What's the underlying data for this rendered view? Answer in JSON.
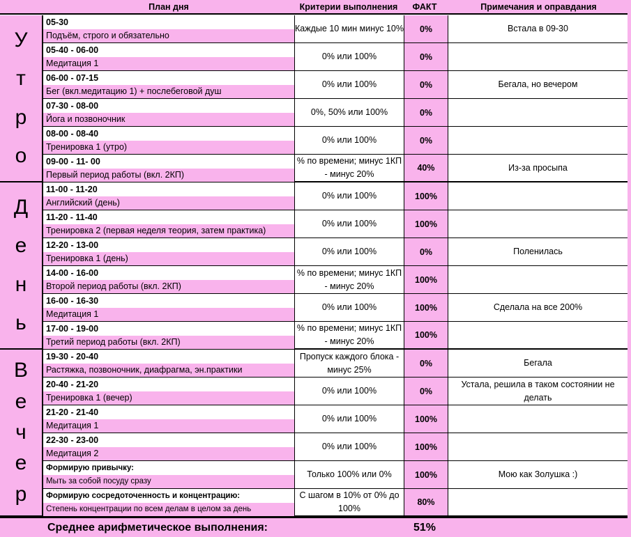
{
  "headers": {
    "plan": "План дня",
    "criteria": "Критерии выполнения",
    "fact": "ФАКТ",
    "notes": "Примечания и оправдания"
  },
  "sections": [
    {
      "letters": [
        "У",
        "т",
        "р",
        "о"
      ]
    },
    {
      "letters": [
        "Д",
        "е",
        "н",
        "ь"
      ]
    },
    {
      "letters": [
        "В",
        "е",
        "ч",
        "е",
        "р"
      ]
    }
  ],
  "rows": [
    {
      "time": "05-30",
      "task": "Подъём, строго и обязательно",
      "criteria": "Каждые 10 мин минус 10%",
      "fact": "0%",
      "note": "Встала в 09-30"
    },
    {
      "time": "05-40 - 06-00",
      "task": "Медитация 1",
      "criteria": "0% или 100%",
      "fact": "0%",
      "note": ""
    },
    {
      "time": "06-00 - 07-15",
      "task": "Бег (вкл.медитацию 1) + послебеговой душ",
      "criteria": "0% или 100%",
      "fact": "0%",
      "note": "Бегала, но вечером"
    },
    {
      "time": "07-30 - 08-00",
      "task": "Йога и позвоночник",
      "criteria": "0%, 50% или 100%",
      "fact": "0%",
      "note": ""
    },
    {
      "time": "08-00 - 08-40",
      "task": "Тренировка 1 (утро)",
      "criteria": "0% или 100%",
      "fact": "0%",
      "note": ""
    },
    {
      "time": "09-00 - 11- 00",
      "task": "Первый период работы (вкл. 2КП)",
      "criteria": "% по времени; минус 1КП - минус 20%",
      "fact": "40%",
      "note": "Из-за просыпа"
    },
    {
      "time": "11-00 - 11-20",
      "task": "Английский (день)",
      "criteria": "0% или 100%",
      "fact": "100%",
      "note": ""
    },
    {
      "time": "11-20 - 11-40",
      "task": "Тренировка 2 (первая неделя теория, затем практика)",
      "criteria": "0% или 100%",
      "fact": "100%",
      "note": ""
    },
    {
      "time": "12-20 - 13-00",
      "task": "Тренировка 1 (день)",
      "criteria": "0% или 100%",
      "fact": "0%",
      "note": "Поленилась"
    },
    {
      "time": "14-00 - 16-00",
      "task": "Второй период работы (вкл. 2КП)",
      "criteria": "% по времени; минус 1КП - минус 20%",
      "fact": "100%",
      "note": ""
    },
    {
      "time": "16-00 - 16-30",
      "task": "Медитация 1",
      "criteria": "0% или 100%",
      "fact": "100%",
      "note": "Сделала на все 200%"
    },
    {
      "time": "17-00 - 19-00",
      "task": "Третий период работы (вкл. 2КП)",
      "criteria": "% по времени; минус 1КП - минус 20%",
      "fact": "100%",
      "note": ""
    },
    {
      "time": "19-30 - 20-40",
      "task": "Растяжка, позвоночник, диафрагма, эн.практики",
      "criteria": "Пропуск каждого блока - минус 25%",
      "fact": "0%",
      "note": "Бегала"
    },
    {
      "time": "20-40 - 21-20",
      "task": "Тренировка 1 (вечер)",
      "criteria": "0% или 100%",
      "fact": "0%",
      "note": "Устала, решила в таком состоянии не делать"
    },
    {
      "time": "21-20 - 21-40",
      "task": "Медитация 1",
      "criteria": "0% или 100%",
      "fact": "100%",
      "note": ""
    },
    {
      "time": "22-30 - 23-00",
      "task": "Медитация 2",
      "criteria": "0% или 100%",
      "fact": "100%",
      "note": ""
    },
    {
      "time": "Формирую привычку:",
      "task": "Мыть за собой посуду сразу",
      "criteria": "Только 100% или 0%",
      "fact": "100%",
      "note": "Мою как Золушка :)"
    },
    {
      "time": "Формирую сосредоточенность и концентрацию:",
      "task": "Степень концентрации по всем делам в целом за день",
      "criteria": "С шагом в 10% от 0% до 100%",
      "fact": "80%",
      "note": ""
    }
  ],
  "footer": {
    "label": "Среднее арифметическое выполнения:",
    "value": "51%"
  },
  "colors": {
    "pink": "#f9b3ec"
  }
}
